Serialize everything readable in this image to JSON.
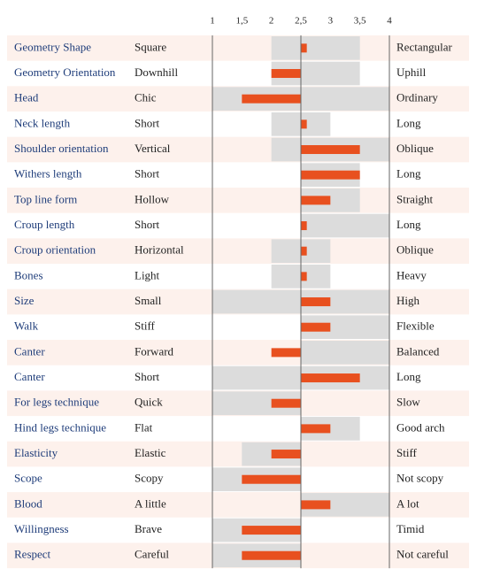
{
  "chart_data": {
    "type": "profile",
    "categories": [
      "Geometry Shape",
      "Geometry Orientation",
      "Head",
      "Neck length",
      "Shoulder orientation",
      "Withers length",
      "Top line form",
      "Croup length",
      "Croup orientation",
      "Bones",
      "Size",
      "Walk",
      "Canter",
      "Canter",
      "For legs technique",
      "Hind legs technique",
      "Elasticity",
      "Scope",
      "Blood",
      "Willingness",
      "Respect"
    ],
    "left_labels": [
      "Square",
      "Downhill",
      "Chic",
      "Short",
      "Vertical",
      "Short",
      "Hollow",
      "Short",
      "Horizontal",
      "Light",
      "Small",
      "Stiff",
      "Forward",
      "Short",
      "Quick",
      "Flat",
      "Elastic",
      "Scopy",
      "A little",
      "Brave",
      "Careful"
    ],
    "right_labels": [
      "Rectangular",
      "Uphill",
      "Ordinary",
      "Long",
      "Oblique",
      "Long",
      "Straight",
      "Long",
      "Oblique",
      "Heavy",
      "High",
      "Flexible",
      "Balanced",
      "Long",
      "Slow",
      "Good arch",
      "Stiff",
      "Not scopy",
      "A lot",
      "Timid",
      "Not careful"
    ],
    "ranges": [
      [
        2,
        3.5
      ],
      [
        2,
        3.5
      ],
      [
        1,
        4
      ],
      [
        2,
        3
      ],
      [
        2,
        4
      ],
      [
        2.5,
        3.5
      ],
      [
        2.5,
        3.5
      ],
      [
        2.5,
        4
      ],
      [
        2,
        3
      ],
      [
        2,
        3
      ],
      [
        1,
        4
      ],
      [
        2.5,
        4
      ],
      [
        2.5,
        4
      ],
      [
        1,
        4
      ],
      [
        1,
        2.5
      ],
      [
        2.5,
        3.5
      ],
      [
        1.5,
        2.5
      ],
      [
        1,
        2.5
      ],
      [
        2.5,
        4
      ],
      [
        1,
        2.5
      ],
      [
        1,
        2.5
      ]
    ],
    "values": [
      2.6,
      2,
      1.5,
      2.6,
      3.5,
      3.5,
      3,
      2.6,
      2.6,
      2.6,
      3,
      3,
      2,
      3.5,
      2,
      3,
      2,
      1.5,
      3,
      1.5,
      1.5
    ],
    "baseline": 2.5,
    "color": "#e8501f",
    "range_color": "#dcdcdc",
    "stripe_color": "#fdf1ec",
    "xlim": [
      1,
      4
    ],
    "xticks": [
      1,
      {
        "value": 1.5,
        "label": "1,5"
      },
      2,
      {
        "value": 2.5,
        "label": "2,5"
      },
      3,
      {
        "value": 3.5,
        "label": "3,5"
      },
      4
    ]
  }
}
